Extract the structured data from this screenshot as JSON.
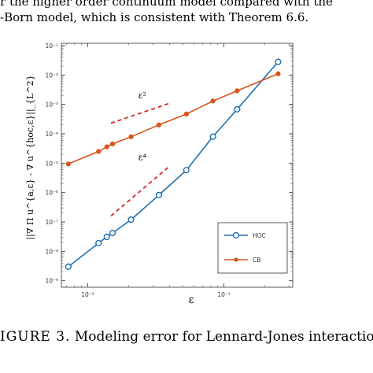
{
  "paragraph": {
    "line1": "r the higher order continuum model compared with the",
    "line2": "-Born model, which is consistent with Theorem 6.6."
  },
  "figure": {
    "caption_lead": "IGURE 3.",
    "caption_text": "Modeling error for Lennard-Jones interactio"
  },
  "chart_data": {
    "type": "line",
    "xscale": "log",
    "yscale": "log",
    "xlim": [
      0.0064,
      0.32
    ],
    "ylim": [
      6e-10,
      0.12
    ],
    "xlabel": "ε",
    "ylabel": "||∇ Π u^{a,ε} - ∇ u^{hoc,ε}||_{L^2}",
    "xticks": [
      {
        "value": 0.01,
        "label": "10⁻²"
      },
      {
        "value": 0.1,
        "label": "10⁻¹"
      }
    ],
    "yticks": [
      {
        "value": 0.1,
        "label": "10⁻¹"
      },
      {
        "value": 0.01,
        "label": "10⁻²"
      },
      {
        "value": 0.001,
        "label": "10⁻³"
      },
      {
        "value": 0.0001,
        "label": "10⁻⁴"
      },
      {
        "value": 1e-05,
        "label": "10⁻⁵"
      },
      {
        "value": 1e-06,
        "label": "10⁻⁶"
      },
      {
        "value": 1e-07,
        "label": "10⁻⁷"
      },
      {
        "value": 1e-08,
        "label": "10⁻⁸"
      },
      {
        "value": 1e-09,
        "label": "10⁻⁹"
      }
    ],
    "legend_position": "bottom-right",
    "series": [
      {
        "name": "HOC",
        "color": "#1f6fb0",
        "marker": "circle-open",
        "x": [
          0.0072,
          0.012,
          0.0138,
          0.0152,
          0.0208,
          0.0333,
          0.053,
          0.083,
          0.125,
          0.25
        ],
        "y": [
          3e-09,
          1.9e-08,
          3.1e-08,
          4.2e-08,
          1.2e-07,
          8.2e-07,
          5.8e-06,
          8e-05,
          0.00068,
          0.028
        ]
      },
      {
        "name": "CB",
        "color": "#d9541a",
        "marker": "dot",
        "x": [
          0.0072,
          0.012,
          0.0138,
          0.0152,
          0.0208,
          0.0333,
          0.053,
          0.083,
          0.125,
          0.25
        ],
        "y": [
          9.4e-06,
          2.5e-05,
          3.6e-05,
          4.5e-05,
          7.9e-05,
          0.0002,
          0.00047,
          0.0013,
          0.0029,
          0.011
        ]
      }
    ],
    "annotations": [
      {
        "text": "ε²",
        "line_x": [
          0.0148,
          0.04
        ],
        "line_y": [
          0.00023,
          0.0011
        ],
        "text_x": 0.0235,
        "text_y": 0.0016,
        "color": "#d62728"
      },
      {
        "text": "ε⁴",
        "line_x": [
          0.0148,
          0.04
        ],
        "line_y": [
          1.6e-07,
          8e-06
        ],
        "text_x": 0.0235,
        "text_y": 1.25e-05,
        "color": "#d62728"
      }
    ]
  }
}
